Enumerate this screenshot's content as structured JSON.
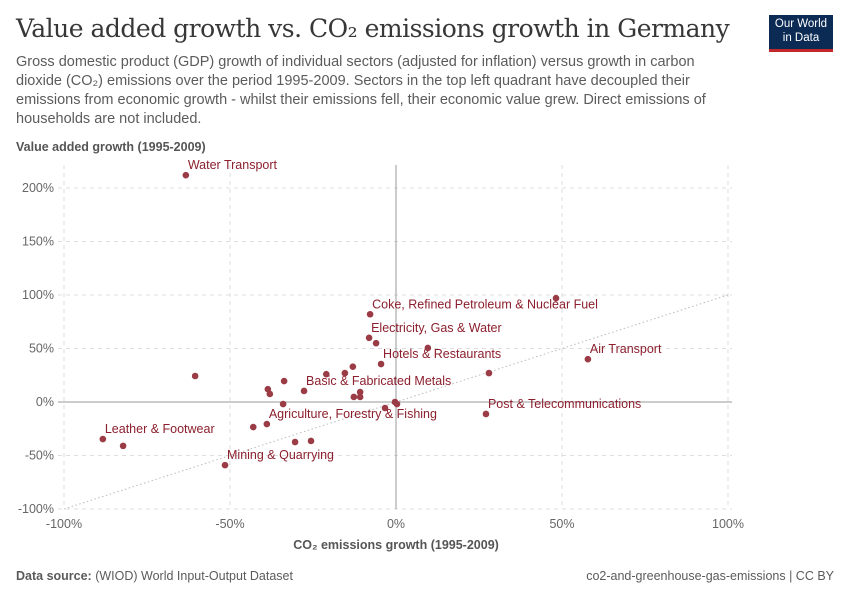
{
  "header": {
    "title": "Value added growth vs. CO₂ emissions growth in Germany",
    "subtitle": "Gross domestic product (GDP) growth of individual sectors (adjusted for inflation) versus growth in carbon dioxide (CO₂) emissions over the period 1995-2009. Sectors in the top left quadrant have decoupled their emissions from economic growth - whilst their emissions fell, their economic value grew. Direct emissions of households are not included.",
    "logo": "Our World in Data"
  },
  "footer": {
    "source_label": "Data source:",
    "source": "(WIOD) World Input-Output Dataset",
    "right": "co2-and-greenhouse-gas-emissions | CC BY"
  },
  "chart_data": {
    "type": "scatter",
    "xlabel": "CO₂ emissions growth (1995-2009)",
    "ylabel": "Value added growth (1995-2009)",
    "xlim": [
      -100,
      100
    ],
    "ylim": [
      -100,
      200
    ],
    "xticks": [
      -100,
      -50,
      0,
      50,
      100
    ],
    "xtick_labels": [
      "-100%",
      "-50%",
      "0%",
      "50%",
      "100%"
    ],
    "yticks": [
      -100,
      -50,
      0,
      50,
      100,
      150,
      200
    ],
    "ytick_labels": [
      "-100%",
      "-50%",
      "0%",
      "50%",
      "100%",
      "150%",
      "200%"
    ],
    "grid": true,
    "reference_line": "y = x",
    "point_color": "#9a3b46",
    "label_color": "#8c1f2d",
    "points": [
      {
        "label": "Water Transport",
        "x": -63.3,
        "y": 212
      },
      {
        "label": "Leather & Footwear",
        "x": -88.3,
        "y": -34.6
      },
      {
        "label": "",
        "x": -82.2,
        "y": -41
      },
      {
        "label": "Mining & Quarrying",
        "x": -51.5,
        "y": -59
      },
      {
        "label": "",
        "x": 48.2,
        "y": 97
      },
      {
        "label": "Coke, Refined Petroleum & Nuclear Fuel",
        "x": -7.8,
        "y": 82
      },
      {
        "label": "Electricity, Gas & Water",
        "x": -8.1,
        "y": 60
      },
      {
        "label": "",
        "x": -6,
        "y": 55
      },
      {
        "label": "Hotels & Restaurants",
        "x": -4.5,
        "y": 35.5
      },
      {
        "label": "",
        "x": 9.6,
        "y": 50.5
      },
      {
        "label": "Air Transport",
        "x": 57.8,
        "y": 40
      },
      {
        "label": "",
        "x": 28,
        "y": 27
      },
      {
        "label": "Post & Telecommunications",
        "x": 27.1,
        "y": -11.2
      },
      {
        "label": "",
        "x": -60.5,
        "y": 24.3
      },
      {
        "label": "",
        "x": -21,
        "y": 26
      },
      {
        "label": "",
        "x": -15.4,
        "y": 27
      },
      {
        "label": "",
        "x": -13,
        "y": 33
      },
      {
        "label": "",
        "x": -33.7,
        "y": 19.6
      },
      {
        "label": "",
        "x": -38.6,
        "y": 12
      },
      {
        "label": "",
        "x": -38,
        "y": 7.5
      },
      {
        "label": "Basic & Fabricated Metals",
        "x": -27.7,
        "y": 10.3
      },
      {
        "label": "",
        "x": -10.8,
        "y": 9.3
      },
      {
        "label": "",
        "x": -12.7,
        "y": 4.7
      },
      {
        "label": "",
        "x": -10.8,
        "y": 4.7
      },
      {
        "label": "",
        "x": -34,
        "y": -1.9
      },
      {
        "label": "",
        "x": -0.3,
        "y": 0
      },
      {
        "label": "",
        "x": 0.3,
        "y": -1.9
      },
      {
        "label": "",
        "x": -3.3,
        "y": -5.6
      },
      {
        "label": "",
        "x": -43,
        "y": -23.4
      },
      {
        "label": "Agriculture, Forestry & Fishing",
        "x": -38.9,
        "y": -20.6
      },
      {
        "label": "",
        "x": -30.4,
        "y": -37.4
      },
      {
        "label": "",
        "x": -25.6,
        "y": -36.4
      }
    ]
  }
}
